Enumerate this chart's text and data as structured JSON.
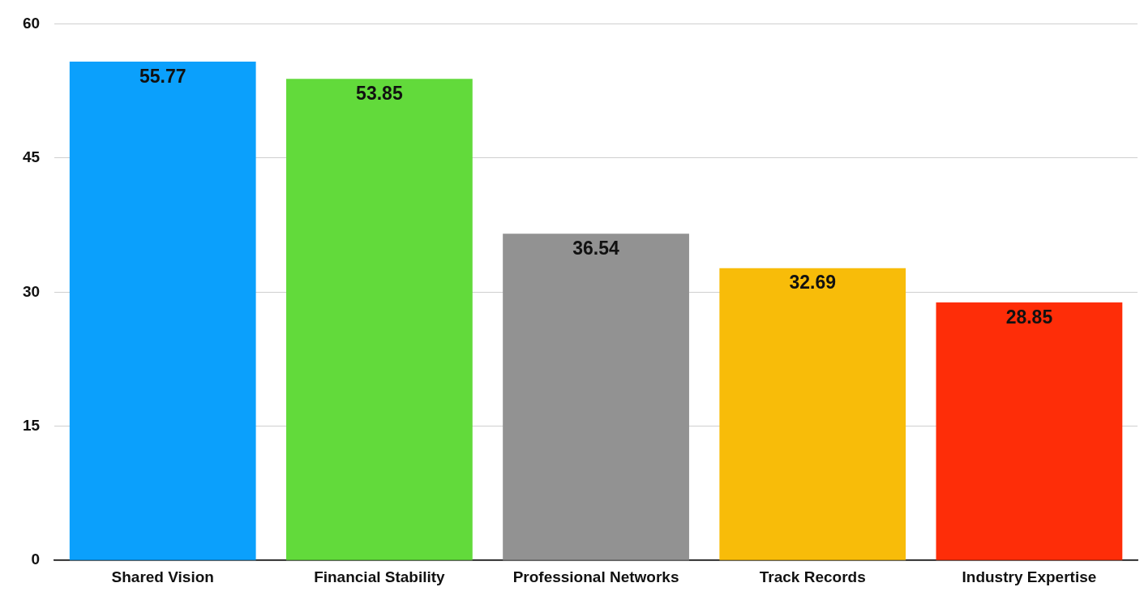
{
  "chart_data": {
    "type": "bar",
    "categories": [
      "Shared Vision",
      "Financial Stability",
      "Professional Networks",
      "Track Records",
      "Industry Expertise"
    ],
    "values": [
      55.77,
      53.85,
      36.54,
      32.69,
      28.85
    ],
    "colors": [
      "#0ba0fc",
      "#62da3b",
      "#929292",
      "#f8bc09",
      "#fe2d08"
    ],
    "ylim": [
      0,
      60
    ],
    "yticks": [
      0,
      15,
      30,
      45,
      60
    ],
    "grid": "y",
    "legend": false,
    "data_labels": true
  }
}
